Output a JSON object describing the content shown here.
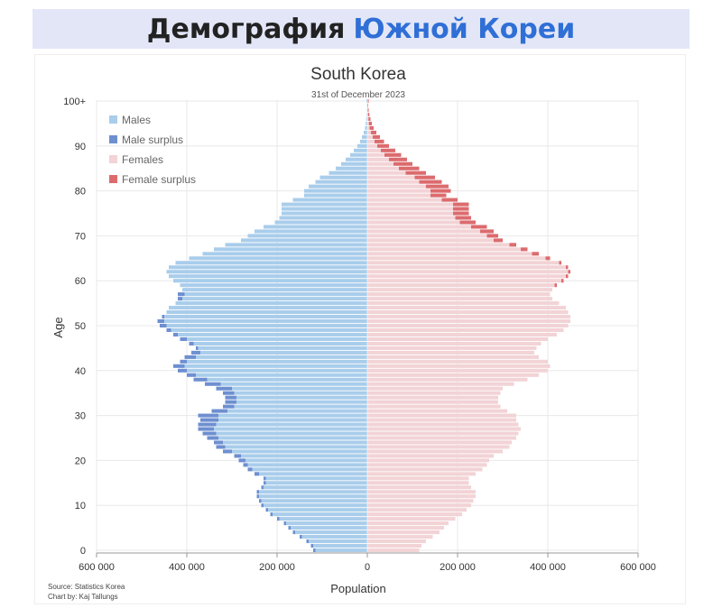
{
  "banner": {
    "text_main": "Демография",
    "text_accent": "Южной Кореи",
    "accent_color": "#2f6fd6",
    "background": "#e3e6f7"
  },
  "source_note": {
    "source": "Source: Statistics Korea",
    "credit": "Chart by: Kaj Tallungs"
  },
  "chart_data": {
    "type": "bar",
    "orientation": "horizontal",
    "style": "population pyramid",
    "title": "South Korea",
    "subtitle": "31st of December 2023",
    "xlabel": "Population",
    "ylabel": "Age",
    "xlim": [
      -600000,
      600000
    ],
    "x_ticks": [
      -600000,
      -400000,
      -200000,
      0,
      200000,
      400000,
      600000
    ],
    "x_tick_labels": [
      "600 000",
      "400 000",
      "200 000",
      "0",
      "200 000",
      "400 000",
      "600 000"
    ],
    "y_ticks": [
      0,
      10,
      20,
      30,
      40,
      50,
      60,
      70,
      80,
      90,
      100
    ],
    "y_tick_labels": [
      "0",
      "10",
      "20",
      "30",
      "40",
      "50",
      "60",
      "70",
      "80",
      "90",
      "100+"
    ],
    "grid": true,
    "legend_position": "top-left",
    "legend": [
      {
        "label": "Males",
        "color": "#a9cdeb"
      },
      {
        "label": "Male surplus",
        "color": "#6e8fd0"
      },
      {
        "label": "Females",
        "color": "#f2d3d6"
      },
      {
        "label": "Female surplus",
        "color": "#dc6b6e"
      }
    ],
    "colors": {
      "males": "#a9cdeb",
      "male_surplus": "#6e8fd0",
      "females": "#f2d3d6",
      "female_surplus": "#dc6b6e",
      "grid": "#e8e8e8"
    },
    "ages": [
      0,
      1,
      2,
      3,
      4,
      5,
      6,
      7,
      8,
      9,
      10,
      11,
      12,
      13,
      14,
      15,
      16,
      17,
      18,
      19,
      20,
      21,
      22,
      23,
      24,
      25,
      26,
      27,
      28,
      29,
      30,
      31,
      32,
      33,
      34,
      35,
      36,
      37,
      38,
      39,
      40,
      41,
      42,
      43,
      44,
      45,
      46,
      47,
      48,
      49,
      50,
      51,
      52,
      53,
      54,
      55,
      56,
      57,
      58,
      59,
      60,
      61,
      62,
      63,
      64,
      65,
      66,
      67,
      68,
      69,
      70,
      71,
      72,
      73,
      74,
      75,
      76,
      77,
      78,
      79,
      80,
      81,
      82,
      83,
      84,
      85,
      86,
      87,
      88,
      89,
      90,
      91,
      92,
      93,
      94,
      95,
      96,
      97,
      98,
      99,
      100
    ],
    "series": [
      {
        "name": "Males",
        "values": [
          120000,
          125000,
          135000,
          150000,
          165000,
          175000,
          185000,
          200000,
          215000,
          225000,
          235000,
          240000,
          245000,
          245000,
          235000,
          230000,
          230000,
          250000,
          265000,
          275000,
          285000,
          295000,
          320000,
          335000,
          340000,
          355000,
          365000,
          375000,
          375000,
          370000,
          375000,
          345000,
          320000,
          315000,
          315000,
          320000,
          335000,
          360000,
          385000,
          400000,
          420000,
          430000,
          415000,
          405000,
          390000,
          380000,
          395000,
          415000,
          430000,
          445000,
          460000,
          465000,
          455000,
          445000,
          440000,
          425000,
          420000,
          420000,
          410000,
          415000,
          430000,
          440000,
          445000,
          440000,
          425000,
          395000,
          365000,
          340000,
          315000,
          280000,
          265000,
          250000,
          230000,
          205000,
          195000,
          190000,
          190000,
          190000,
          165000,
          140000,
          140000,
          130000,
          115000,
          105000,
          85000,
          70000,
          58000,
          48000,
          38000,
          30000,
          22000,
          16000,
          12000,
          8000,
          5000,
          3500,
          2500,
          1500,
          1000,
          600,
          1500
        ]
      },
      {
        "name": "Females",
        "values": [
          115000,
          120000,
          130000,
          145000,
          160000,
          170000,
          180000,
          195000,
          210000,
          220000,
          230000,
          235000,
          240000,
          240000,
          230000,
          225000,
          225000,
          240000,
          255000,
          265000,
          270000,
          280000,
          300000,
          315000,
          320000,
          330000,
          335000,
          340000,
          335000,
          330000,
          330000,
          310000,
          295000,
          290000,
          290000,
          295000,
          300000,
          325000,
          355000,
          380000,
          400000,
          405000,
          400000,
          380000,
          370000,
          375000,
          385000,
          400000,
          420000,
          435000,
          445000,
          450000,
          450000,
          445000,
          440000,
          425000,
          410000,
          405000,
          410000,
          420000,
          435000,
          445000,
          450000,
          445000,
          430000,
          405000,
          380000,
          355000,
          330000,
          300000,
          290000,
          280000,
          265000,
          240000,
          230000,
          225000,
          225000,
          225000,
          200000,
          175000,
          185000,
          180000,
          165000,
          150000,
          130000,
          115000,
          100000,
          88000,
          75000,
          62000,
          48000,
          37000,
          28000,
          20000,
          14000,
          10000,
          7000,
          4500,
          3000,
          2000,
          3000
        ]
      }
    ]
  }
}
